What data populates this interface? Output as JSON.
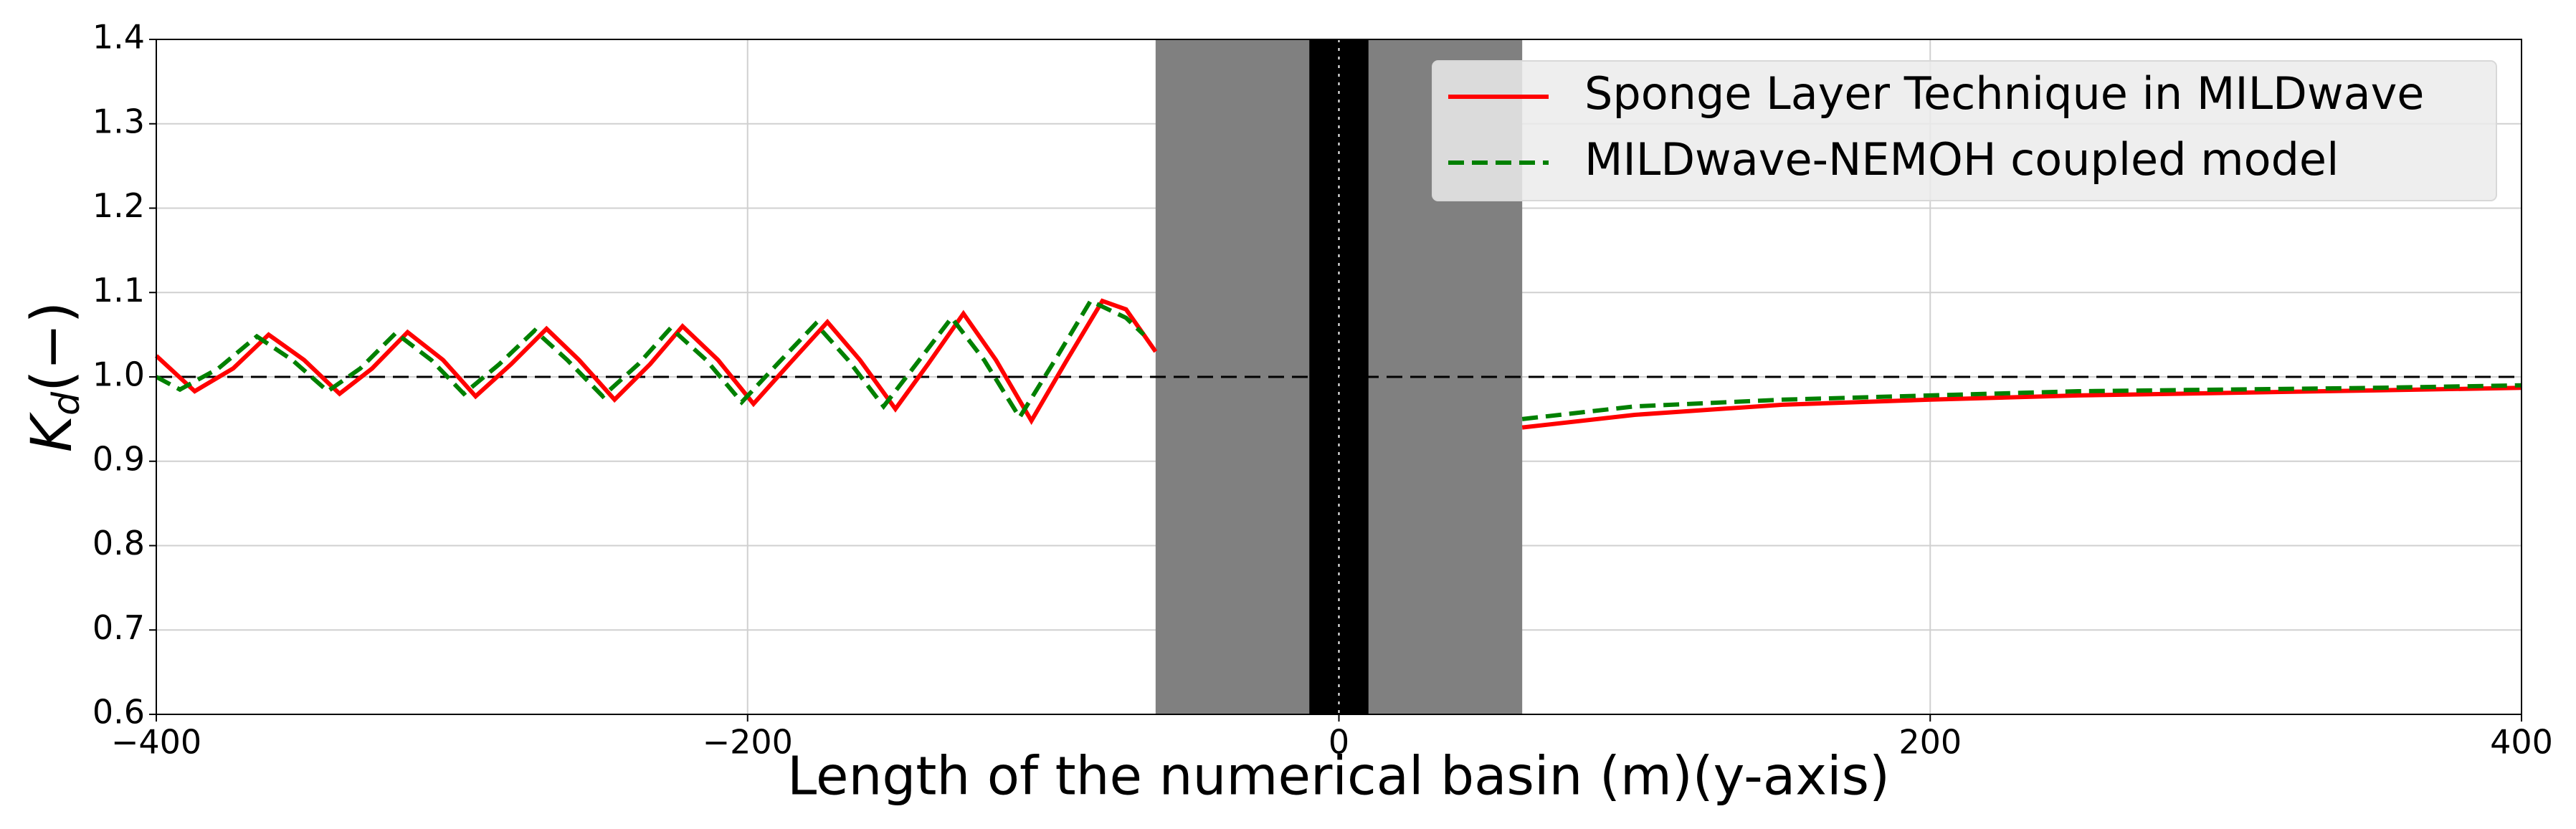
{
  "chart_data": {
    "type": "line",
    "xlabel": "Length of the numerical basin (m)(y-axis)",
    "ylabel": [
      "K",
      "d",
      "(−)"
    ],
    "xlim": [
      -400,
      400
    ],
    "ylim": [
      0.6,
      1.4
    ],
    "xticks": [
      {
        "value": -400,
        "label": "−400"
      },
      {
        "value": -200,
        "label": "−200"
      },
      0,
      200,
      400
    ],
    "yticks": [
      0.6,
      0.7,
      0.8,
      0.9,
      {
        "value": 1,
        "label": "1.0"
      },
      1.1,
      1.2,
      1.3,
      1.4
    ],
    "grid": true,
    "legend": "upper right",
    "shaded_regions": [
      {
        "range": [
          -62,
          62
        ],
        "color": "#808080"
      },
      {
        "range": [
          -10,
          10
        ],
        "color": "#000000"
      }
    ],
    "hlines": [
      {
        "value": 1,
        "color": "#000000",
        "style": "dashed"
      }
    ],
    "vlines": [
      {
        "value": 0,
        "color": "#ffffff",
        "style": "dotted"
      }
    ],
    "series": [
      {
        "name": "Sponge Layer Technique in MILDwave",
        "color": "#ff0000",
        "style": "solid",
        "x": [
          -400,
          -387,
          -374,
          -362,
          -350,
          -338,
          -327,
          -315,
          -303,
          -292,
          -280,
          -268,
          -257,
          -245,
          -233,
          -222,
          -210,
          -198,
          -186,
          -173,
          -162,
          -150,
          -139,
          -127,
          -116,
          -104,
          -92,
          -80,
          -72,
          -62,
          0,
          62,
          100,
          150,
          200,
          250,
          300,
          350,
          400
        ],
        "values": [
          1.025,
          0.983,
          1.01,
          1.05,
          1.02,
          0.98,
          1.01,
          1.053,
          1.02,
          0.977,
          1.015,
          1.057,
          1.02,
          0.973,
          1.015,
          1.06,
          1.02,
          0.968,
          1.015,
          1.065,
          1.02,
          0.962,
          1.015,
          1.075,
          1.02,
          0.948,
          1.02,
          1.09,
          1.08,
          1.03,
          null,
          0.94,
          0.955,
          0.967,
          0.973,
          0.978,
          0.981,
          0.984,
          0.987
        ]
      },
      {
        "name": "MILDwave-NEMOH coupled model",
        "color": "#008000",
        "style": "dashed",
        "x": [
          -400,
          -392,
          -379,
          -366,
          -354,
          -342,
          -331,
          -319,
          -307,
          -296,
          -284,
          -272,
          -261,
          -249,
          -237,
          -226,
          -214,
          -202,
          -190,
          -177,
          -166,
          -154,
          -143,
          -131,
          -120,
          -108,
          -96,
          -84,
          -72,
          -66,
          0,
          62,
          100,
          150,
          200,
          250,
          300,
          350,
          400
        ],
        "values": [
          1.0,
          0.985,
          1.01,
          1.048,
          1.02,
          0.983,
          1.01,
          1.052,
          1.02,
          0.98,
          1.015,
          1.055,
          1.02,
          0.977,
          1.015,
          1.058,
          1.02,
          0.97,
          1.015,
          1.063,
          1.02,
          0.965,
          1.015,
          1.07,
          1.02,
          0.952,
          1.02,
          1.09,
          1.07,
          1.05,
          null,
          0.95,
          0.965,
          0.973,
          0.978,
          0.983,
          0.985,
          0.987,
          0.99
        ]
      }
    ]
  }
}
